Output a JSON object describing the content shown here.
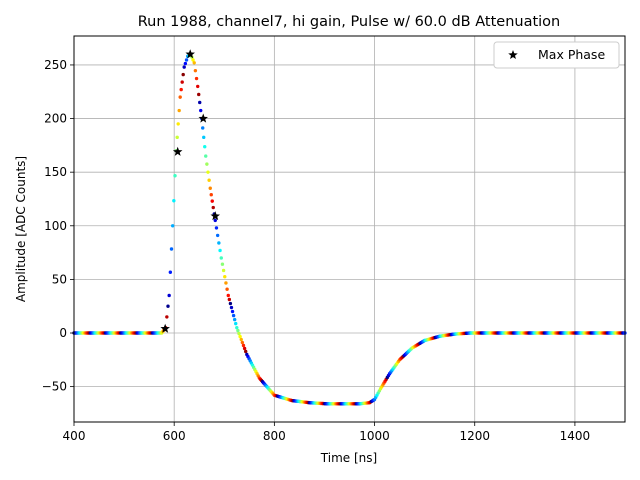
{
  "chart_data": {
    "type": "scatter",
    "title": "Run 1988, channel7, hi gain, Pulse w/ 60.0 dB Attenuation",
    "xlabel": "Time [ns]",
    "ylabel": "Amplitude [ADC Counts]",
    "xlim": [
      400,
      1500
    ],
    "ylim": [
      -83,
      277
    ],
    "xticks": [
      400,
      600,
      800,
      1000,
      1200,
      1400
    ],
    "yticks": [
      -50,
      0,
      50,
      100,
      150,
      200,
      250
    ],
    "grid": true,
    "legend": {
      "position": "top-right",
      "entries": [
        "Max Phase"
      ]
    },
    "colormap": "jet",
    "series": [
      {
        "name": "",
        "kind": "waveform",
        "marker": "dot",
        "x": [
          400,
          450,
          500,
          550,
          575,
          583,
          590,
          597,
          604,
          612,
          620,
          627,
          633,
          640,
          647,
          655,
          663,
          672,
          682,
          694,
          708,
          725,
          745,
          770,
          800,
          835,
          870,
          905,
          940,
          970,
          990,
          1000,
          1012,
          1030,
          1050,
          1075,
          1100,
          1130,
          1160,
          1190,
          1220,
          1260,
          1300,
          1350,
          1400,
          1450,
          1500
        ],
        "y": [
          0,
          0,
          0,
          0,
          0,
          5,
          35,
          100,
          170,
          220,
          248,
          258,
          260,
          252,
          230,
          200,
          165,
          135,
          105,
          70,
          35,
          5,
          -20,
          -42,
          -58,
          -63,
          -65,
          -66,
          -66,
          -66,
          -65,
          -62,
          -52,
          -38,
          -25,
          -14,
          -7,
          -3,
          -1,
          0,
          0,
          0,
          0,
          0,
          0,
          0,
          0
        ]
      },
      {
        "name": "Max Phase",
        "marker": "star",
        "color": "#000000",
        "x": [
          582,
          607,
          632,
          658,
          682
        ],
        "y": [
          4,
          169,
          260,
          200,
          109
        ]
      }
    ]
  }
}
